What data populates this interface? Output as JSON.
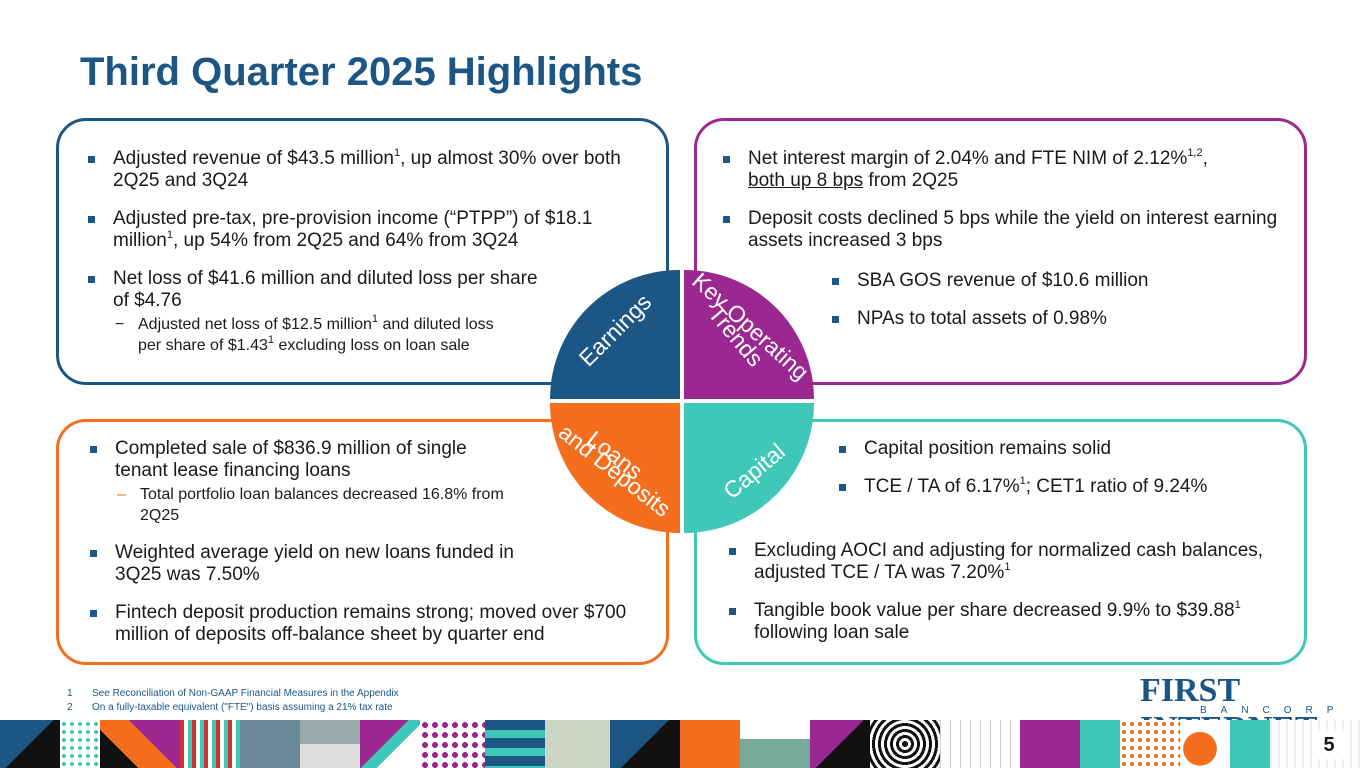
{
  "title": "Third Quarter 2025 Highlights",
  "earnings": {
    "bullets": [
      {
        "text": "Adjusted revenue of $43.5 million",
        "sup": "1",
        "tail": ", up almost 30% over both 2Q25 and 3Q24"
      },
      {
        "text": "Adjusted pre-tax, pre-provision income (“PTPP”) of $18.1 million",
        "sup": "1",
        "tail": ", up 54% from 2Q25 and 64% from 3Q24"
      },
      {
        "text": "Net loss of $41.6 million and diluted loss per share of $4.76"
      }
    ],
    "sub_a": "Adjusted net loss of $12.5 million",
    "sub_a_sup": "1",
    "sub_b": " and diluted loss per share of $1.43",
    "sub_b_sup": "1",
    "sub_c": " excluding loss on loan sale"
  },
  "key_trends": {
    "b1_a": "Net interest margin of 2.04% and FTE NIM of 2.12%",
    "b1_sup": "1,2",
    "b1_b": ",",
    "b1_u": "both up 8 bps",
    "b1_c": " from 2Q25",
    "b2": "Deposit costs declined 5 bps while the yield on interest earning assets increased 3 bps",
    "b3": "SBA GOS revenue of $10.6 million",
    "b4": "NPAs to total assets of 0.98%"
  },
  "loans": {
    "b1": "Completed sale of $836.9 million of single tenant lease financing loans",
    "b1_sub": "Total portfolio loan balances decreased 16.8% from 2Q25",
    "b2": "Weighted average yield on new loans funded in 3Q25 was 7.50%",
    "b3": "Fintech deposit production remains strong; moved over $700 million of deposits off-balance sheet by quarter end"
  },
  "capital": {
    "b1": "Capital position remains solid",
    "b2_a": "TCE / TA of 6.17%",
    "b2_sup": "1",
    "b2_b": "; CET1 ratio of 9.24%",
    "b3_a": "Excluding AOCI and adjusting for normalized cash balances, adjusted TCE / TA was 7.20%",
    "b3_sup": "1",
    "b4_a": "Tangible book value per share decreased 9.9% to $39.88",
    "b4_sup": "1",
    "b4_b": " following loan sale"
  },
  "quadrants": {
    "earnings": "Earnings",
    "key_line1": "Key Operating",
    "key_line2": "Trends",
    "loans_line1": "Loans",
    "loans_line2": "and Deposits",
    "capital": "Capital"
  },
  "footnotes": [
    {
      "num": "1",
      "text": "See Reconciliation of Non-GAAP Financial Measures in the Appendix"
    },
    {
      "num": "2",
      "text": "On a fully-taxable equivalent (\"FTE\") basis assuming a 21% tax rate"
    }
  ],
  "logo": {
    "main": "FIRST INTERNET",
    "sub": "BANCORP"
  },
  "page_number": "5",
  "colors": {
    "navy": "#1b5684",
    "purple": "#9b2790",
    "orange": "#f46e1e",
    "teal": "#3fc7b8"
  }
}
